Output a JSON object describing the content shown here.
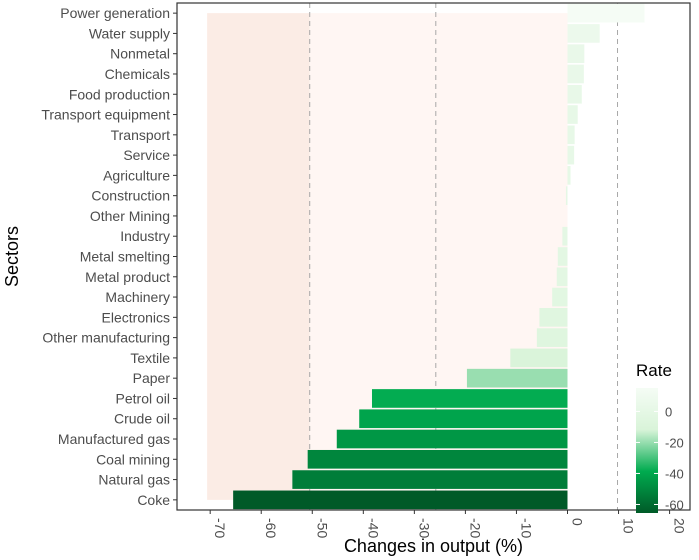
{
  "chart_data": {
    "type": "bar",
    "orientation": "horizontal",
    "xlabel": "Changes in output (%)",
    "ylabel": "Sectors",
    "xlim": [
      -76.5,
      24
    ],
    "xticks": [
      -70,
      -60,
      -50,
      -40,
      -30,
      -20,
      -10,
      0,
      10,
      20
    ],
    "gridlines_dashed_at": [
      -50.5,
      -25.8,
      9.8
    ],
    "shaded_bands": [
      {
        "from": -70.6,
        "to": -50.5,
        "color": "#fbece5"
      },
      {
        "from": -50.5,
        "to": 0,
        "color": "#fff6f3"
      }
    ],
    "categories": [
      "Power generation",
      "Water supply",
      "Nonmetal",
      "Chemicals",
      "Food production",
      "Transport equipment",
      "Transport",
      "Service",
      "Agriculture",
      "Construction",
      "Other Mining",
      "Industry",
      "Metal smelting",
      "Metal product",
      "Machinery",
      "Electronics",
      "Other manufacturing",
      "Textile",
      "Paper",
      "Petrol oil",
      "Crude oil",
      "Manufactured gas",
      "Coal mining",
      "Natural gas",
      "Coke"
    ],
    "values": [
      15.1,
      6.3,
      3.3,
      3.2,
      2.8,
      2.0,
      1.4,
      1.3,
      0.6,
      -0.3,
      0.0,
      -1.0,
      -1.9,
      -2.1,
      -3.0,
      -5.5,
      -6.0,
      -11.2,
      -19.7,
      -38.3,
      -40.8,
      -45.2,
      -50.9,
      -53.9,
      -65.5
    ],
    "legend": {
      "title": "Rate",
      "position": "right",
      "ticks": [
        0,
        -20,
        -40,
        -60
      ],
      "domain": [
        -65.5,
        15.1
      ],
      "colors": [
        "#005a28",
        "#00ab4f",
        "#d9f4d9",
        "#f5fcf5"
      ]
    }
  }
}
